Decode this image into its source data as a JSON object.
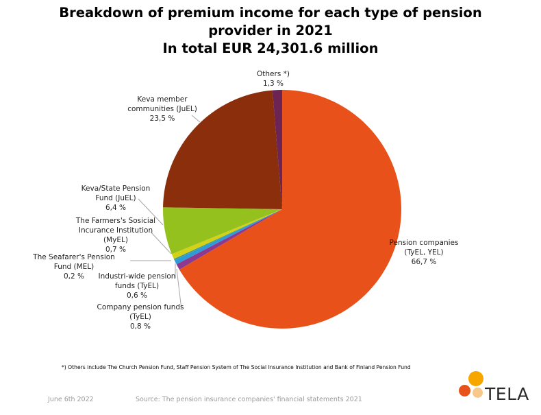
{
  "title": {
    "line1": "Breakdown of premium income for each type of pension",
    "line2": "provider in 2021",
    "line3": "In total EUR 24,301.6 million"
  },
  "chart_data": {
    "type": "pie",
    "title": "Breakdown of premium income for each type of pension provider in 2021",
    "subtitle": "In total EUR 24,301.6 million",
    "slices": [
      {
        "label": "Pension companies (TyEL, YEL)",
        "label_lines": [
          "Pension companies",
          "(TyEL, YEL)",
          "66,7 %"
        ],
        "value": 66.7,
        "color": "#e8521a"
      },
      {
        "label": "Company pension funds (TyEL)",
        "label_lines": [
          "Company pension funds",
          "(TyEL)",
          "0,8 %"
        ],
        "value": 0.8,
        "color": "#8b3a8f"
      },
      {
        "label": "Industri-wide pension funds (TyEL)",
        "label_lines": [
          "Industri-wide pension",
          "funds (TyEL)",
          "0,6 %"
        ],
        "value": 0.6,
        "color": "#2e9bd6"
      },
      {
        "label": "The Seafarer's Pension Fund (MEL)",
        "label_lines": [
          "The Seafarer's Pension",
          "Fund (MEL)",
          "0,2 %"
        ],
        "value": 0.2,
        "color": "#3f9f97"
      },
      {
        "label": "The Farmers's Sosicial Incurance Institution (MyEL)",
        "label_lines": [
          "The Farmers's Sosicial",
          "Incurance Institution",
          "(MyEL)",
          "0,7 %"
        ],
        "value": 0.7,
        "color": "#d5d117"
      },
      {
        "label": "Keva/State Pension Fund (JuEL)",
        "label_lines": [
          "Keva/State Pension",
          "Fund (JuEL)",
          "6,4 %"
        ],
        "value": 6.4,
        "color": "#95c11f"
      },
      {
        "label": "Keva member communities (JuEL)",
        "label_lines": [
          "Keva member",
          "communities (JuEL)",
          "23,5 %"
        ],
        "value": 23.5,
        "color": "#8b2e0c"
      },
      {
        "label": "Others *)",
        "label_lines": [
          "Others *)",
          "1,3 %"
        ],
        "value": 1.3,
        "color": "#6b2453"
      }
    ]
  },
  "footnote": "*) Others include The Church Pension Fund, Staff Pension System of The Social Insurance Institution and Bank of Finland Pension Fund",
  "footer": {
    "date": "June 6th 2022",
    "source": "Source: The pension insurance companies' financial statements 2021"
  },
  "logo": {
    "text": "TELA",
    "colors": [
      "#f7a600",
      "#e8521a",
      "#f7c88a"
    ]
  }
}
